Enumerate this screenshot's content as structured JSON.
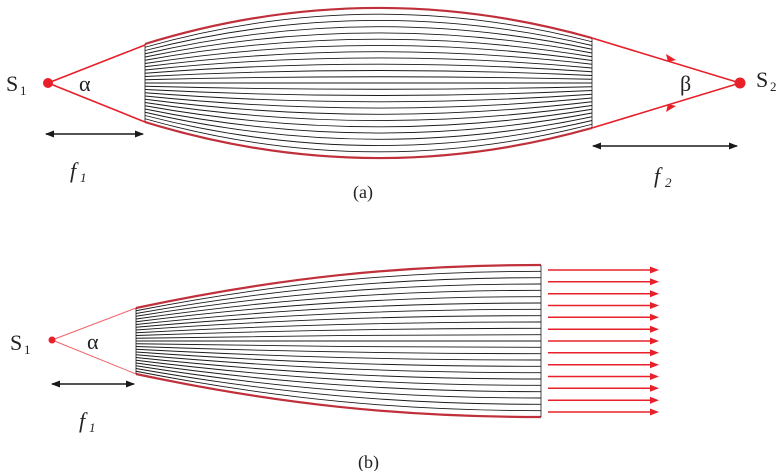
{
  "colors": {
    "ray": "#e8202a",
    "fiber": "#1a1a1a",
    "edge_fiber": "#c0303a",
    "arrow": "#1a1a1a",
    "text": "#222222"
  },
  "panel_a": {
    "source_left": {
      "main": "S",
      "sub": "1"
    },
    "source_right": {
      "main": "S",
      "sub": "2"
    },
    "angle_left": "α",
    "angle_right": "β",
    "focal_left": {
      "main": "f",
      "sub": "1"
    },
    "focal_right": {
      "main": "f",
      "sub": "2"
    },
    "caption": "(a)"
  },
  "panel_b": {
    "source_left": {
      "main": "S",
      "sub": "1"
    },
    "angle_left": "α",
    "focal_left": {
      "main": "f",
      "sub": "1"
    },
    "caption": "(b)",
    "output_ray_count": 13
  },
  "icons": {
    "source_point": "filled-circle",
    "ray_head": "triangle-arrowhead",
    "dimension_arrow": "double-headed-arrow"
  }
}
